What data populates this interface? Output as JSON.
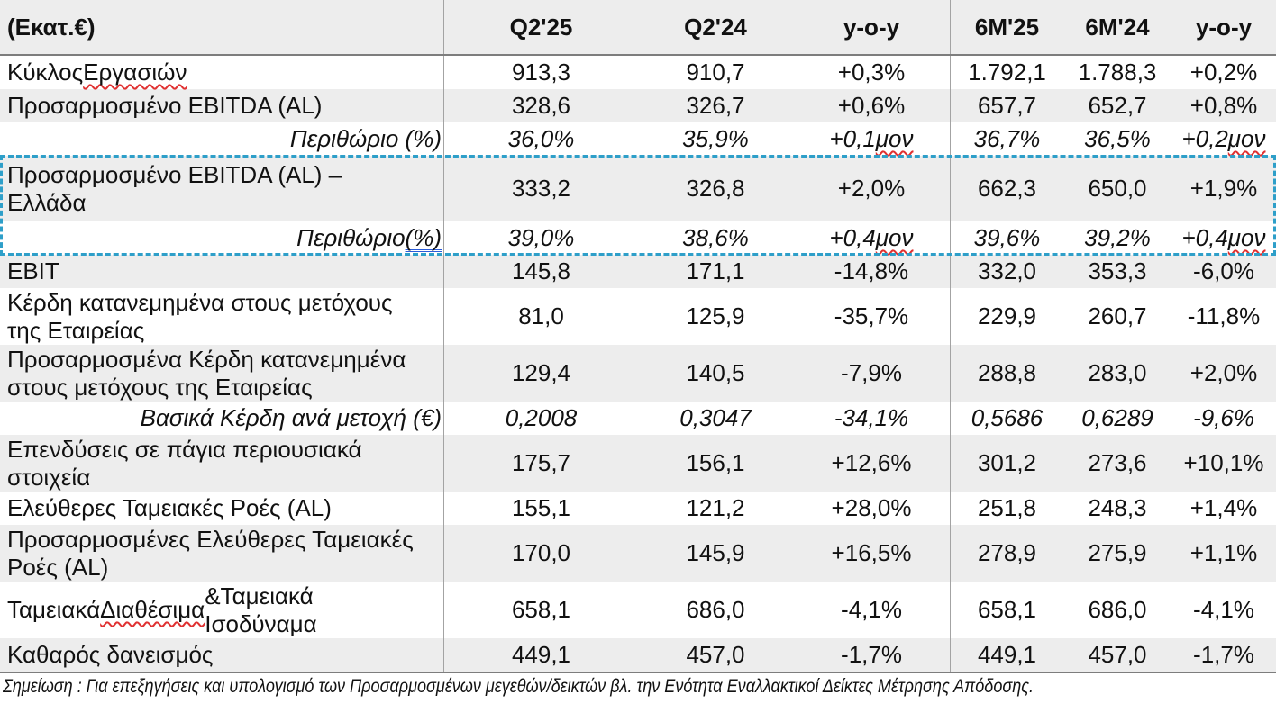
{
  "table": {
    "unit_label": "(Εκατ.€)",
    "columns": [
      "Q2'25",
      "Q2'24",
      "y-o-y",
      "6M'25",
      "6M'24",
      "y-o-y"
    ],
    "rows": [
      {
        "label": "Κύκλος Εργασιών",
        "values": [
          "913,3",
          "910,7",
          "+0,3%",
          "1.792,1",
          "1.788,3",
          "+0,2%"
        ],
        "shaded": false,
        "emphasis": "normal",
        "highlighted": false,
        "marks": {
          "label": [
            {
              "text": "Εργασιών",
              "type": "spell"
            }
          ],
          "values": []
        }
      },
      {
        "label": "Προσαρμοσμένο EBITDA (AL)",
        "values": [
          "328,6",
          "326,7",
          "+0,6%",
          "657,7",
          "652,7",
          "+0,8%"
        ],
        "shaded": true,
        "emphasis": "normal",
        "highlighted": false,
        "marks": {
          "label": [],
          "values": []
        }
      },
      {
        "label": "Περιθώριο (%)",
        "values": [
          "36,0%",
          "35,9%",
          "+0,1 μον",
          "36,7%",
          "36,5%",
          "+0,2 μον"
        ],
        "shaded": false,
        "emphasis": "italic-right",
        "highlighted": false,
        "marks": {
          "label": [],
          "values": [
            {
              "text": "μον",
              "type": "spell"
            }
          ]
        }
      },
      {
        "label": "Προσαρμοσμένο EBITDA (AL) –\nΕλλάδα",
        "values": [
          "333,2",
          "326,8",
          "+2,0%",
          "662,3",
          "650,0",
          "+1,9%"
        ],
        "shaded": true,
        "emphasis": "normal",
        "highlighted": true,
        "marks": {
          "label": [],
          "values": []
        }
      },
      {
        "label": "Περιθώριο (%)",
        "values": [
          "39,0%",
          "38,6%",
          "+0,4 μον",
          "39,6%",
          "39,2%",
          "+0,4 μον"
        ],
        "shaded": false,
        "emphasis": "italic-right",
        "highlighted": true,
        "marks": {
          "label": [
            {
              "text": "(%)",
              "type": "grammar"
            }
          ],
          "values": [
            {
              "text": "μον",
              "type": "spell"
            }
          ]
        }
      },
      {
        "label": "EBIT",
        "values": [
          "145,8",
          "171,1",
          "-14,8%",
          "332,0",
          "353,3",
          "-6,0%"
        ],
        "shaded": true,
        "emphasis": "normal",
        "highlighted": false,
        "marks": {
          "label": [],
          "values": []
        }
      },
      {
        "label": "Κέρδη κατανεμημένα στους μετόχους\nτης Εταιρείας",
        "values": [
          "81,0",
          "125,9",
          "-35,7%",
          "229,9",
          "260,7",
          "-11,8%"
        ],
        "shaded": false,
        "emphasis": "normal",
        "highlighted": false,
        "marks": {
          "label": [],
          "values": []
        }
      },
      {
        "label": "Προσαρμοσμένα Κέρδη κατανεμημένα\nστους μετόχους της Εταιρείας",
        "values": [
          "129,4",
          "140,5",
          "-7,9%",
          "288,8",
          "283,0",
          "+2,0%"
        ],
        "shaded": true,
        "emphasis": "normal",
        "highlighted": false,
        "marks": {
          "label": [],
          "values": []
        }
      },
      {
        "label": "Βασικά Κέρδη ανά μετοχή (€)",
        "values": [
          "0,2008",
          "0,3047",
          "-34,1%",
          "0,5686",
          "0,6289",
          "-9,6%"
        ],
        "shaded": false,
        "emphasis": "italic-right",
        "highlighted": false,
        "marks": {
          "label": [],
          "values": []
        }
      },
      {
        "label": "Επενδύσεις σε πάγια περιουσιακά\nστοιχεία",
        "values": [
          "175,7",
          "156,1",
          "+12,6%",
          "301,2",
          "273,6",
          "+10,1%"
        ],
        "shaded": true,
        "emphasis": "normal",
        "highlighted": false,
        "marks": {
          "label": [],
          "values": []
        }
      },
      {
        "label": "Ελεύθερες Ταμειακές Ροές (AL)",
        "values": [
          "155,1",
          "121,2",
          "+28,0%",
          "251,8",
          "248,3",
          "+1,4%"
        ],
        "shaded": false,
        "emphasis": "normal",
        "highlighted": false,
        "marks": {
          "label": [],
          "values": []
        }
      },
      {
        "label": "Προσαρμοσμένες Ελεύθερες Ταμειακές\nΡοές (AL)",
        "values": [
          "170,0",
          "145,9",
          "+16,5%",
          "278,9",
          "275,9",
          "+1,1%"
        ],
        "shaded": true,
        "emphasis": "normal",
        "highlighted": false,
        "marks": {
          "label": [],
          "values": []
        }
      },
      {
        "label": "Ταμειακά Διαθέσιμα &Ταμειακά\nΙσοδύναμα",
        "values": [
          "658,1",
          "686,0",
          "-4,1%",
          "658,1",
          "686,0",
          "-4,1%"
        ],
        "shaded": false,
        "emphasis": "normal",
        "highlighted": false,
        "marks": {
          "label": [
            {
              "text": "Διαθέσιμα",
              "type": "spell"
            }
          ],
          "values": []
        }
      },
      {
        "label": "Καθαρός δανεισμός",
        "values": [
          "449,1",
          "457,0",
          "-1,7%",
          "449,1",
          "457,0",
          "-1,7%"
        ],
        "shaded": true,
        "emphasis": "normal",
        "highlighted": false,
        "marks": {
          "label": [],
          "values": []
        }
      }
    ]
  },
  "footnote": "Σημείωση : Για επεξηγήσεις και υπολογισμό των Προσαρμοσμένων μεγεθών/δεικτών βλ. την Ενότητα Εναλλακτικοί Δείκτες Μέτρησης Απόδοσης.",
  "colors": {
    "row_shade": "#ededed",
    "header_bg": "#ededed",
    "column_divider": "#a3a3a3",
    "strong_line": "#7d7d7d",
    "highlight_border": "#2e9fc9",
    "spell_underline": "#e03131",
    "grammar_underline": "#2b5cd9"
  }
}
